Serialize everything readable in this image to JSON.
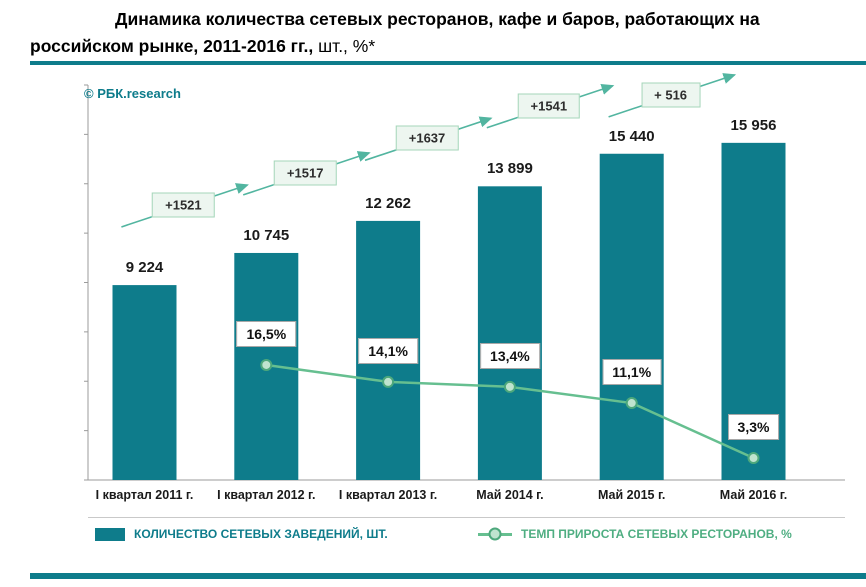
{
  "title": {
    "line1": "Динамика количества сетевых ресторанов, кафе и баров, работающих на",
    "line2": "российском рынке, 2011-2016 гг.,",
    "suffix": " шт., %*"
  },
  "watermark": "© РБК.research",
  "chart_data": {
    "type": "bar",
    "title": "Динамика количества сетевых ресторанов, кафе и баров, работающих на российском рынке, 2011-2016 гг., шт., %",
    "categories": [
      "I квартал 2011 г.",
      "I квартал 2012 г.",
      "I квартал 2013 г.",
      "Май 2014 г.",
      "Май 2015 г.",
      "Май 2016 г."
    ],
    "series": [
      {
        "name": "КОЛИЧЕСТВО СЕТЕВЫХ ЗАВЕДЕНИЙ, ШТ.",
        "type": "bar",
        "values": [
          9224,
          10745,
          12262,
          13899,
          15440,
          15956
        ],
        "value_labels": [
          "9 224",
          "10 745",
          "12 262",
          "13 899",
          "15 440",
          "15 956"
        ],
        "color": "#0e7c8b"
      },
      {
        "name": "ТЕМП ПРИРОСТА СЕТЕВЫХ РЕСТОРАНОВ, %",
        "type": "line",
        "values": [
          null,
          16.5,
          14.1,
          13.4,
          11.1,
          3.3
        ],
        "value_labels": [
          null,
          "16,5%",
          "14,1%",
          "13,4%",
          "11,1%",
          "3,3%"
        ],
        "color": "#66bf90"
      }
    ],
    "annotations": {
      "deltas": [
        "+1521",
        "+1517",
        "+1637",
        "+1541",
        "+ 516"
      ]
    },
    "ylim": [
      0,
      17000
    ],
    "grid": false,
    "legend_position": "bottom"
  },
  "colors": {
    "teal": "#0e7c8b",
    "green": "#66bf90",
    "arrow": "#52b5a0",
    "axis": "#9b9b9b",
    "delta_bg": "#edf6f0",
    "delta_border": "#a5d6ba"
  }
}
